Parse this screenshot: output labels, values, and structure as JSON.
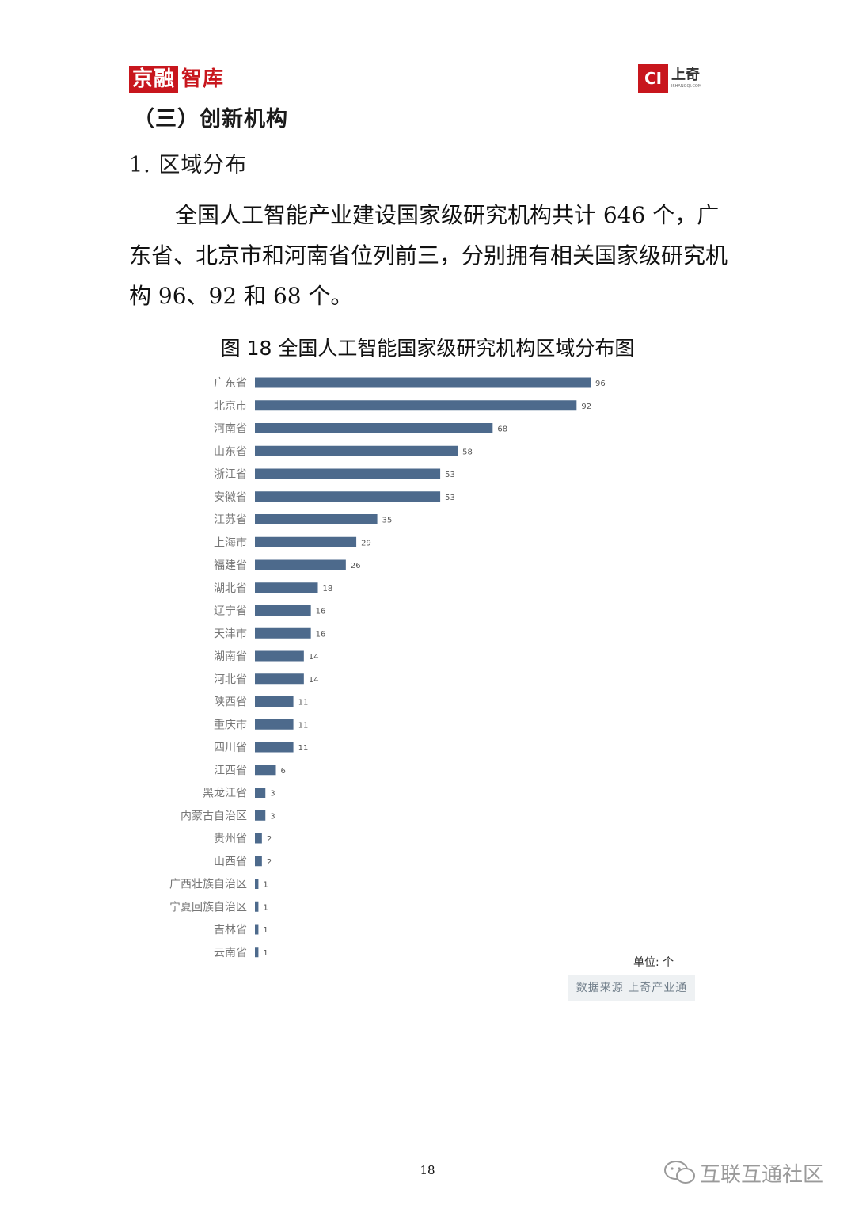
{
  "header": {
    "logo_left_a": "京融",
    "logo_left_b": "智库",
    "logo_right_mark": "CI",
    "logo_right_name": "上奇",
    "logo_right_sub": "ISHANGQI.COM"
  },
  "section_title": "（三）创新机构",
  "subsection_title": "1. 区域分布",
  "paragraph": "全国人工智能产业建设国家级研究机构共计 646 个，广东省、北京市和河南省位列前三，分别拥有相关国家级研究机构 96、92 和 68 个。",
  "figure_title": "图 18  全国人工智能国家级研究机构区域分布图",
  "unit_label": "单位: 个",
  "source_label": "数据来源 上奇产业通",
  "page_number": "18",
  "watermark_text": "互联互通社区",
  "colors": {
    "bar": "#4d6a8c",
    "brand_red": "#c8161d"
  },
  "chart_data": {
    "type": "bar",
    "orientation": "horizontal",
    "categories": [
      "广东省",
      "北京市",
      "河南省",
      "山东省",
      "浙江省",
      "安徽省",
      "江苏省",
      "上海市",
      "福建省",
      "湖北省",
      "辽宁省",
      "天津市",
      "湖南省",
      "河北省",
      "陕西省",
      "重庆市",
      "四川省",
      "江西省",
      "黑龙江省",
      "内蒙古自治区",
      "贵州省",
      "山西省",
      "广西壮族自治区",
      "宁夏回族自治区",
      "吉林省",
      "云南省"
    ],
    "values": [
      96,
      92,
      68,
      58,
      53,
      53,
      35,
      29,
      26,
      18,
      16,
      16,
      14,
      14,
      11,
      11,
      11,
      6,
      3,
      3,
      2,
      2,
      1,
      1,
      1,
      1
    ],
    "title": "图 18  全国人工智能国家级研究机构区域分布图",
    "xlabel": "",
    "ylabel": "",
    "data_labels": true,
    "grid": false
  }
}
